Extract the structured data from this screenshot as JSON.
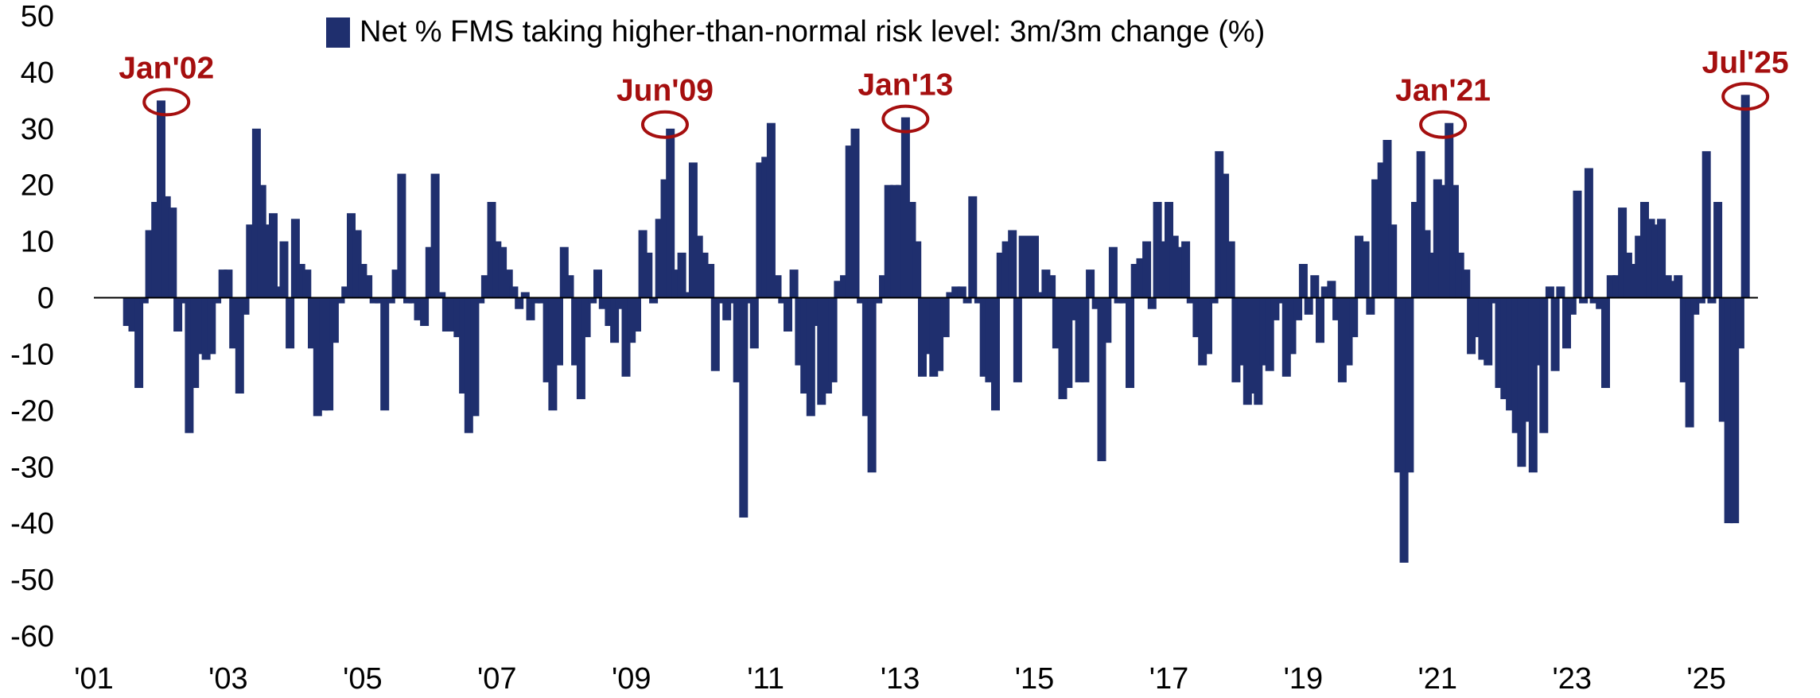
{
  "chart_data": {
    "type": "bar",
    "legend": "Net % FMS taking higher-than-normal risk level: 3m/3m change (%)",
    "series_color": "#1f2f6e",
    "annotation_color": "#a50f0f",
    "ylim": [
      -60,
      50
    ],
    "yticks": [
      "50",
      "40",
      "30",
      "20",
      "10",
      "0",
      "-10",
      "-20",
      "-30",
      "-40",
      "-50",
      "-60"
    ],
    "ytick_values": [
      50,
      40,
      30,
      20,
      10,
      0,
      -10,
      -20,
      -30,
      -40,
      -50,
      -60
    ],
    "xlim": [
      2001.0,
      2026.3
    ],
    "xticks": [
      "'01",
      "'03",
      "'05",
      "'07",
      "'09",
      "'11",
      "'13",
      "'15",
      "'17",
      "'19",
      "'21",
      "'23",
      "'25"
    ],
    "xtick_values": [
      2001,
      2003,
      2005,
      2007,
      2009,
      2011,
      2013,
      2015,
      2017,
      2019,
      2021,
      2023,
      2025
    ],
    "legend_position": "top-center",
    "grid": false,
    "annotations": [
      {
        "label": "Jan'02",
        "x": 2002.08,
        "y": 35
      },
      {
        "label": "Jun'09",
        "x": 2009.5,
        "y": 31
      },
      {
        "label": "Jan'13",
        "x": 2013.08,
        "y": 32
      },
      {
        "label": "Jan'21",
        "x": 2021.08,
        "y": 31
      },
      {
        "label": "Jul'25",
        "x": 2025.58,
        "y": 36
      }
    ],
    "series": [
      {
        "values": [
          [
            2001.5,
            -5
          ],
          [
            2001.58,
            -6
          ],
          [
            2001.67,
            -16
          ],
          [
            2001.75,
            -1
          ],
          [
            2001.83,
            12
          ],
          [
            2001.92,
            17
          ],
          [
            2002.0,
            35
          ],
          [
            2002.08,
            18
          ],
          [
            2002.17,
            16
          ],
          [
            2002.25,
            -6
          ],
          [
            2002.33,
            -1
          ],
          [
            2002.42,
            -24
          ],
          [
            2002.5,
            -16
          ],
          [
            2002.58,
            -10
          ],
          [
            2002.67,
            -11
          ],
          [
            2002.75,
            -10
          ],
          [
            2002.83,
            -1
          ],
          [
            2002.92,
            5
          ],
          [
            2003.0,
            5
          ],
          [
            2003.08,
            -9
          ],
          [
            2003.17,
            -17
          ],
          [
            2003.25,
            -3
          ],
          [
            2003.33,
            13
          ],
          [
            2003.42,
            30
          ],
          [
            2003.5,
            20
          ],
          [
            2003.58,
            13
          ],
          [
            2003.67,
            15
          ],
          [
            2003.75,
            2
          ],
          [
            2003.83,
            10
          ],
          [
            2003.92,
            -9
          ],
          [
            2004.0,
            14
          ],
          [
            2004.08,
            6
          ],
          [
            2004.17,
            5
          ],
          [
            2004.25,
            -9
          ],
          [
            2004.33,
            -21
          ],
          [
            2004.42,
            -20
          ],
          [
            2004.5,
            -20
          ],
          [
            2004.58,
            -8
          ],
          [
            2004.67,
            -1
          ],
          [
            2004.75,
            2
          ],
          [
            2004.83,
            15
          ],
          [
            2004.92,
            12
          ],
          [
            2005.0,
            6
          ],
          [
            2005.08,
            4
          ],
          [
            2005.17,
            -1
          ],
          [
            2005.25,
            -1
          ],
          [
            2005.33,
            -20
          ],
          [
            2005.42,
            -1
          ],
          [
            2005.5,
            5
          ],
          [
            2005.58,
            22
          ],
          [
            2005.67,
            -1
          ],
          [
            2005.75,
            -1
          ],
          [
            2005.83,
            -4
          ],
          [
            2005.92,
            -5
          ],
          [
            2006.0,
            9
          ],
          [
            2006.08,
            22
          ],
          [
            2006.17,
            1
          ],
          [
            2006.25,
            -6
          ],
          [
            2006.33,
            -6
          ],
          [
            2006.42,
            -7
          ],
          [
            2006.5,
            -17
          ],
          [
            2006.58,
            -24
          ],
          [
            2006.67,
            -21
          ],
          [
            2006.75,
            -1
          ],
          [
            2006.83,
            4
          ],
          [
            2006.92,
            17
          ],
          [
            2007.0,
            10
          ],
          [
            2007.08,
            9
          ],
          [
            2007.17,
            5
          ],
          [
            2007.25,
            2
          ],
          [
            2007.33,
            -2
          ],
          [
            2007.42,
            1
          ],
          [
            2007.5,
            -4
          ],
          [
            2007.58,
            -1
          ],
          [
            2007.67,
            -1
          ],
          [
            2007.75,
            -15
          ],
          [
            2007.83,
            -20
          ],
          [
            2007.92,
            -12
          ],
          [
            2008.0,
            9
          ],
          [
            2008.08,
            4
          ],
          [
            2008.17,
            -12
          ],
          [
            2008.25,
            -18
          ],
          [
            2008.33,
            -7
          ],
          [
            2008.42,
            -1
          ],
          [
            2008.5,
            5
          ],
          [
            2008.58,
            -2
          ],
          [
            2008.67,
            -5
          ],
          [
            2008.75,
            -8
          ],
          [
            2008.83,
            -2
          ],
          [
            2008.92,
            -14
          ],
          [
            2009.0,
            -8
          ],
          [
            2009.08,
            -6
          ],
          [
            2009.17,
            12
          ],
          [
            2009.25,
            8
          ],
          [
            2009.33,
            -1
          ],
          [
            2009.42,
            14
          ],
          [
            2009.5,
            21
          ],
          [
            2009.58,
            30
          ],
          [
            2009.67,
            5
          ],
          [
            2009.75,
            8
          ],
          [
            2009.83,
            1
          ],
          [
            2009.92,
            24
          ],
          [
            2010.0,
            11
          ],
          [
            2010.08,
            8
          ],
          [
            2010.17,
            6
          ],
          [
            2010.25,
            -13
          ],
          [
            2010.33,
            -1
          ],
          [
            2010.42,
            -4
          ],
          [
            2010.5,
            -1
          ],
          [
            2010.58,
            -15
          ],
          [
            2010.67,
            -39
          ],
          [
            2010.75,
            -1
          ],
          [
            2010.83,
            -9
          ],
          [
            2010.92,
            24
          ],
          [
            2011.0,
            25
          ],
          [
            2011.08,
            31
          ],
          [
            2011.17,
            4
          ],
          [
            2011.25,
            -1
          ],
          [
            2011.33,
            -6
          ],
          [
            2011.42,
            5
          ],
          [
            2011.5,
            -12
          ],
          [
            2011.58,
            -17
          ],
          [
            2011.67,
            -21
          ],
          [
            2011.75,
            -5
          ],
          [
            2011.83,
            -19
          ],
          [
            2011.92,
            -17
          ],
          [
            2012.0,
            -15
          ],
          [
            2012.08,
            3
          ],
          [
            2012.17,
            4
          ],
          [
            2012.25,
            27
          ],
          [
            2012.33,
            30
          ],
          [
            2012.42,
            -1
          ],
          [
            2012.5,
            -21
          ],
          [
            2012.58,
            -31
          ],
          [
            2012.67,
            -1
          ],
          [
            2012.75,
            4
          ],
          [
            2012.83,
            20
          ],
          [
            2012.92,
            20
          ],
          [
            2013.0,
            20
          ],
          [
            2013.08,
            32
          ],
          [
            2013.17,
            17
          ],
          [
            2013.25,
            10
          ],
          [
            2013.33,
            -14
          ],
          [
            2013.42,
            -10
          ],
          [
            2013.5,
            -14
          ],
          [
            2013.58,
            -13
          ],
          [
            2013.67,
            -7
          ],
          [
            2013.75,
            1
          ],
          [
            2013.83,
            2
          ],
          [
            2013.92,
            2
          ],
          [
            2014.0,
            -1
          ],
          [
            2014.08,
            18
          ],
          [
            2014.17,
            -1
          ],
          [
            2014.25,
            -14
          ],
          [
            2014.33,
            -15
          ],
          [
            2014.42,
            -20
          ],
          [
            2014.5,
            8
          ],
          [
            2014.58,
            10
          ],
          [
            2014.67,
            12
          ],
          [
            2014.75,
            -15
          ],
          [
            2014.83,
            11
          ],
          [
            2014.92,
            11
          ],
          [
            2015.0,
            11
          ],
          [
            2015.08,
            1
          ],
          [
            2015.17,
            5
          ],
          [
            2015.25,
            4
          ],
          [
            2015.33,
            -9
          ],
          [
            2015.42,
            -18
          ],
          [
            2015.5,
            -16
          ],
          [
            2015.58,
            -4
          ],
          [
            2015.67,
            -15
          ],
          [
            2015.75,
            -15
          ],
          [
            2015.83,
            5
          ],
          [
            2015.92,
            -2
          ],
          [
            2016.0,
            -29
          ],
          [
            2016.08,
            -8
          ],
          [
            2016.17,
            9
          ],
          [
            2016.25,
            -1
          ],
          [
            2016.33,
            -1
          ],
          [
            2016.42,
            -16
          ],
          [
            2016.5,
            6
          ],
          [
            2016.58,
            7
          ],
          [
            2016.67,
            10
          ],
          [
            2016.75,
            -2
          ],
          [
            2016.83,
            17
          ],
          [
            2016.92,
            10
          ],
          [
            2017.0,
            17
          ],
          [
            2017.08,
            11
          ],
          [
            2017.17,
            9
          ],
          [
            2017.25,
            10
          ],
          [
            2017.33,
            -1
          ],
          [
            2017.42,
            -7
          ],
          [
            2017.5,
            -12
          ],
          [
            2017.58,
            -10
          ],
          [
            2017.67,
            -1
          ],
          [
            2017.75,
            26
          ],
          [
            2017.83,
            22
          ],
          [
            2017.92,
            10
          ],
          [
            2018.0,
            -15
          ],
          [
            2018.08,
            -12
          ],
          [
            2018.17,
            -19
          ],
          [
            2018.25,
            -17
          ],
          [
            2018.33,
            -19
          ],
          [
            2018.42,
            -12
          ],
          [
            2018.5,
            -13
          ],
          [
            2018.58,
            -4
          ],
          [
            2018.67,
            -1
          ],
          [
            2018.75,
            -14
          ],
          [
            2018.83,
            -10
          ],
          [
            2018.92,
            -4
          ],
          [
            2019.0,
            6
          ],
          [
            2019.08,
            -3
          ],
          [
            2019.17,
            4
          ],
          [
            2019.25,
            -8
          ],
          [
            2019.33,
            2
          ],
          [
            2019.42,
            3
          ],
          [
            2019.5,
            -4
          ],
          [
            2019.58,
            -15
          ],
          [
            2019.67,
            -12
          ],
          [
            2019.75,
            -7
          ],
          [
            2019.83,
            11
          ],
          [
            2019.92,
            10
          ],
          [
            2020.0,
            -3
          ],
          [
            2020.08,
            21
          ],
          [
            2020.17,
            24
          ],
          [
            2020.25,
            28
          ],
          [
            2020.33,
            13
          ],
          [
            2020.42,
            -31
          ],
          [
            2020.5,
            -47
          ],
          [
            2020.58,
            -31
          ],
          [
            2020.67,
            17
          ],
          [
            2020.75,
            26
          ],
          [
            2020.83,
            12
          ],
          [
            2020.92,
            8
          ],
          [
            2021.0,
            21
          ],
          [
            2021.08,
            20
          ],
          [
            2021.17,
            31
          ],
          [
            2021.25,
            20
          ],
          [
            2021.33,
            8
          ],
          [
            2021.42,
            5
          ],
          [
            2021.5,
            -10
          ],
          [
            2021.58,
            -7
          ],
          [
            2021.67,
            -11
          ],
          [
            2021.75,
            -12
          ],
          [
            2021.83,
            -1
          ],
          [
            2021.92,
            -16
          ],
          [
            2022.0,
            -18
          ],
          [
            2022.08,
            -20
          ],
          [
            2022.17,
            -24
          ],
          [
            2022.25,
            -30
          ],
          [
            2022.33,
            -22
          ],
          [
            2022.42,
            -31
          ],
          [
            2022.5,
            -12
          ],
          [
            2022.58,
            -24
          ],
          [
            2022.67,
            2
          ],
          [
            2022.75,
            -13
          ],
          [
            2022.83,
            2
          ],
          [
            2022.92,
            -9
          ],
          [
            2023.0,
            -3
          ],
          [
            2023.08,
            19
          ],
          [
            2023.17,
            -1
          ],
          [
            2023.25,
            23
          ],
          [
            2023.33,
            -1
          ],
          [
            2023.42,
            -2
          ],
          [
            2023.5,
            -16
          ],
          [
            2023.58,
            4
          ],
          [
            2023.67,
            4
          ],
          [
            2023.75,
            16
          ],
          [
            2023.83,
            8
          ],
          [
            2023.92,
            6
          ],
          [
            2024.0,
            11
          ],
          [
            2024.08,
            17
          ],
          [
            2024.17,
            14
          ],
          [
            2024.25,
            13
          ],
          [
            2024.33,
            14
          ],
          [
            2024.42,
            4
          ],
          [
            2024.5,
            3
          ],
          [
            2024.58,
            4
          ],
          [
            2024.67,
            -15
          ],
          [
            2024.75,
            -23
          ],
          [
            2024.83,
            -3
          ],
          [
            2024.92,
            -1
          ],
          [
            2025.0,
            26
          ],
          [
            2025.08,
            -1
          ],
          [
            2025.17,
            17
          ],
          [
            2025.25,
            -22
          ],
          [
            2025.33,
            -40
          ],
          [
            2025.42,
            -40
          ],
          [
            2025.5,
            -9
          ],
          [
            2025.58,
            36
          ]
        ]
      }
    ]
  }
}
